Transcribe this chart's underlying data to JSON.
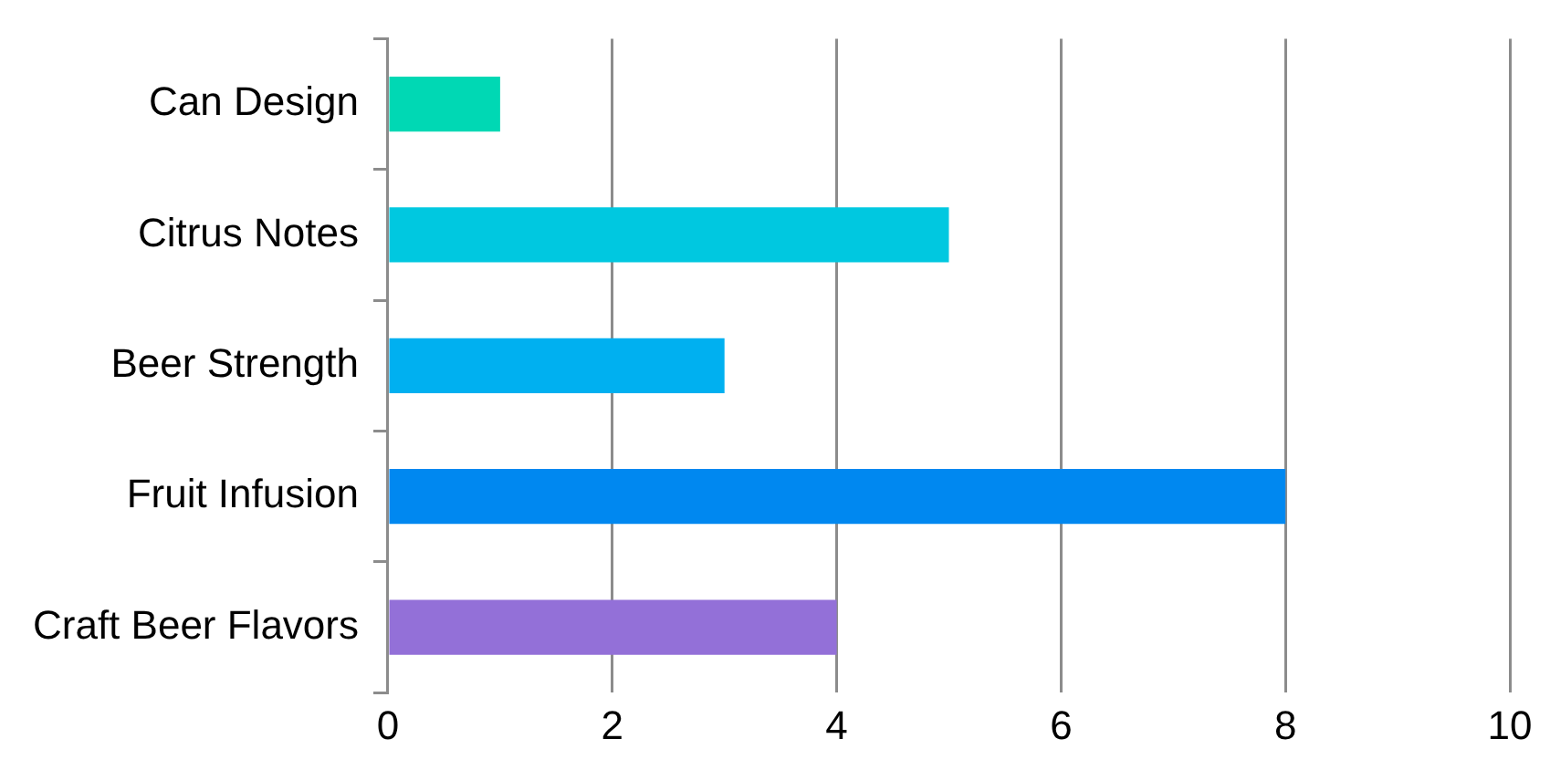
{
  "chart_data": {
    "type": "bar",
    "orientation": "horizontal",
    "categories": [
      "Can Design",
      "Citrus Notes",
      "Beer Strength",
      "Fruit Infusion",
      "Craft Beer Flavors"
    ],
    "values": [
      1,
      5,
      3,
      8,
      4
    ],
    "colors": [
      "#00d8b4",
      "#00c8e0",
      "#00b0f0",
      "#0088f0",
      "#9370d8"
    ],
    "xlim": [
      0,
      10
    ],
    "xticks": [
      0,
      2,
      4,
      6,
      8,
      10
    ],
    "grid": "x",
    "legend": false
  }
}
